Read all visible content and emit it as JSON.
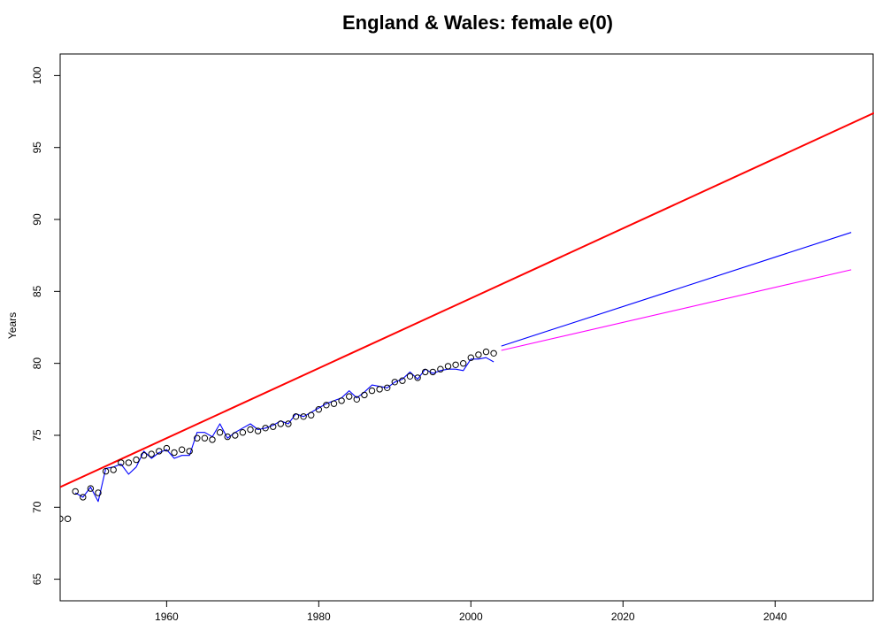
{
  "chart_data": {
    "type": "line",
    "title": "England & Wales: female e(0)",
    "xlabel": "",
    "ylabel": "Years",
    "xlim": [
      1946,
      2053
    ],
    "ylim": [
      63.5,
      101.5
    ],
    "x_ticks": [
      1960,
      1980,
      2000,
      2020,
      2040
    ],
    "y_ticks": [
      65,
      70,
      75,
      80,
      85,
      90,
      95,
      100
    ],
    "grid": false,
    "legend": "none",
    "observed_points": {
      "style": "open-circle",
      "color": "#000000",
      "x": [
        1946,
        1947,
        1948,
        1949,
        1950,
        1951,
        1952,
        1953,
        1954,
        1955,
        1956,
        1957,
        1958,
        1959,
        1960,
        1961,
        1962,
        1963,
        1964,
        1965,
        1966,
        1967,
        1968,
        1969,
        1970,
        1971,
        1972,
        1973,
        1974,
        1975,
        1976,
        1977,
        1978,
        1979,
        1980,
        1981,
        1982,
        1983,
        1984,
        1985,
        1986,
        1987,
        1988,
        1989,
        1990,
        1991,
        1992,
        1993,
        1994,
        1995,
        1996,
        1997,
        1998,
        1999,
        2000,
        2001,
        2002,
        2003
      ],
      "y": [
        69.2,
        69.2,
        71.1,
        70.7,
        71.3,
        71.0,
        72.5,
        72.6,
        73.1,
        73.1,
        73.3,
        73.6,
        73.7,
        73.9,
        74.1,
        73.8,
        74.0,
        73.9,
        74.8,
        74.8,
        74.7,
        75.2,
        74.9,
        75.0,
        75.2,
        75.4,
        75.3,
        75.5,
        75.6,
        75.8,
        75.8,
        76.3,
        76.3,
        76.4,
        76.8,
        77.1,
        77.2,
        77.4,
        77.7,
        77.5,
        77.8,
        78.1,
        78.2,
        78.3,
        78.7,
        78.8,
        79.1,
        79.0,
        79.4,
        79.4,
        79.6,
        79.8,
        79.9,
        80.0,
        80.4,
        80.6,
        80.8,
        80.7
      ]
    },
    "series": [
      {
        "color": "#0000ff",
        "stroke": "thin",
        "x": [
          1948,
          1949,
          1950,
          1951,
          1952,
          1953,
          1954,
          1955,
          1956,
          1957,
          1958,
          1959,
          1960,
          1961,
          1962,
          1963,
          1964,
          1965,
          1966,
          1967,
          1968,
          1969,
          1970,
          1971,
          1972,
          1973,
          1974,
          1975,
          1976,
          1977,
          1978,
          1979,
          1980,
          1981,
          1982,
          1983,
          1984,
          1985,
          1986,
          1987,
          1988,
          1989,
          1990,
          1991,
          1992,
          1993,
          1994,
          1995,
          1996,
          1997,
          1998,
          1999,
          2000,
          2001,
          2002,
          2003
        ],
        "y": [
          71.0,
          70.7,
          71.4,
          70.4,
          72.7,
          72.8,
          73.0,
          72.3,
          72.8,
          73.9,
          73.4,
          73.8,
          74.0,
          73.4,
          73.6,
          73.6,
          75.2,
          75.2,
          74.9,
          75.8,
          74.8,
          75.2,
          75.5,
          75.8,
          75.4,
          75.5,
          75.7,
          76.0,
          75.8,
          76.5,
          76.3,
          76.6,
          76.9,
          77.2,
          77.4,
          77.6,
          78.1,
          77.6,
          78.0,
          78.5,
          78.4,
          78.3,
          78.7,
          78.9,
          79.4,
          78.9,
          79.6,
          79.3,
          79.5,
          79.6,
          79.6,
          79.5,
          80.3,
          80.3,
          80.4,
          80.1
        ]
      },
      {
        "color": "#ff0000",
        "stroke": "thick",
        "x": [
          1946,
          2053
        ],
        "y": [
          71.4,
          97.4
        ]
      },
      {
        "color": "#0000ff",
        "stroke": "thin",
        "x": [
          2004,
          2050
        ],
        "y": [
          81.2,
          89.1
        ]
      },
      {
        "color": "#ff00ff",
        "stroke": "thin",
        "x": [
          2004,
          2050
        ],
        "y": [
          80.9,
          86.5
        ]
      }
    ]
  }
}
